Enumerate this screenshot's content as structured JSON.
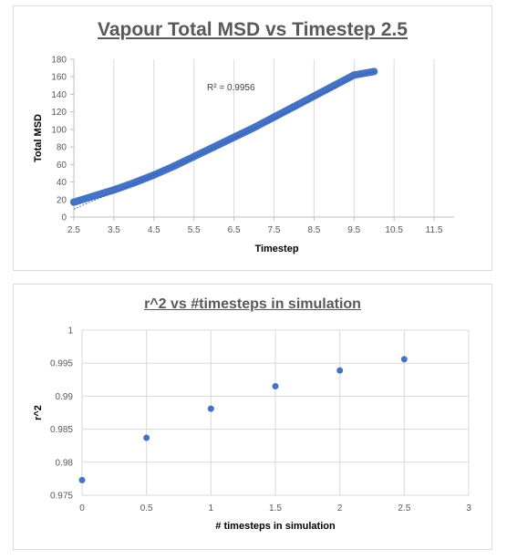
{
  "chart_data": [
    {
      "type": "scatter",
      "title": "Vapour Total MSD vs Timestep 2.5",
      "xlabel": "Timestep",
      "ylabel": "Total MSD",
      "xlim": [
        2.5,
        12
      ],
      "ylim": [
        0,
        180
      ],
      "xticks": [
        "2.5",
        "3.5",
        "4.5",
        "5.5",
        "6.5",
        "7.5",
        "8.5",
        "9.5",
        "10.5",
        "11.5"
      ],
      "yticks": [
        "0",
        "20",
        "40",
        "60",
        "80",
        "100",
        "120",
        "140",
        "160",
        "180"
      ],
      "grid": "vertical",
      "annotation": "R² = 0.9956",
      "series": [
        {
          "color": "#4472c4",
          "x": [
            2.5,
            3.0,
            3.5,
            4.0,
            4.5,
            5.0,
            5.5,
            6.0,
            6.5,
            7.0,
            7.5,
            8.0,
            8.5,
            9.0,
            9.5,
            10.0
          ],
          "y": [
            17,
            24,
            31,
            39,
            48,
            58,
            69,
            80,
            91,
            102,
            114,
            126,
            138,
            150,
            162,
            166
          ]
        }
      ],
      "trendline": {
        "style": "dotted",
        "x": [
          2.5,
          3.0,
          3.5,
          4.0,
          4.5,
          5.0,
          5.5,
          6.0,
          6.5,
          7.0,
          7.5,
          8.0,
          8.5,
          9.0,
          9.5,
          10.0
        ],
        "y": [
          9,
          19,
          28,
          38,
          48,
          58,
          68,
          79,
          90,
          101,
          112,
          124,
          136,
          148,
          160,
          166
        ]
      }
    },
    {
      "type": "scatter",
      "title": "r^2 vs #timesteps in simulation",
      "xlabel": "# timesteps in simulation",
      "ylabel": "r^2",
      "xlim": [
        0,
        3
      ],
      "ylim": [
        0.975,
        1
      ],
      "xticks": [
        "0",
        "0.5",
        "1",
        "1.5",
        "2",
        "2.5",
        "3"
      ],
      "yticks": [
        "0.975",
        "0.98",
        "0.985",
        "0.99",
        "0.995",
        "1"
      ],
      "grid": "both",
      "series": [
        {
          "color": "#4472c4",
          "x": [
            0,
            0.5,
            1,
            1.5,
            2,
            2.5
          ],
          "y": [
            0.9773,
            0.9837,
            0.9881,
            0.9915,
            0.9939,
            0.9956
          ]
        }
      ]
    }
  ]
}
